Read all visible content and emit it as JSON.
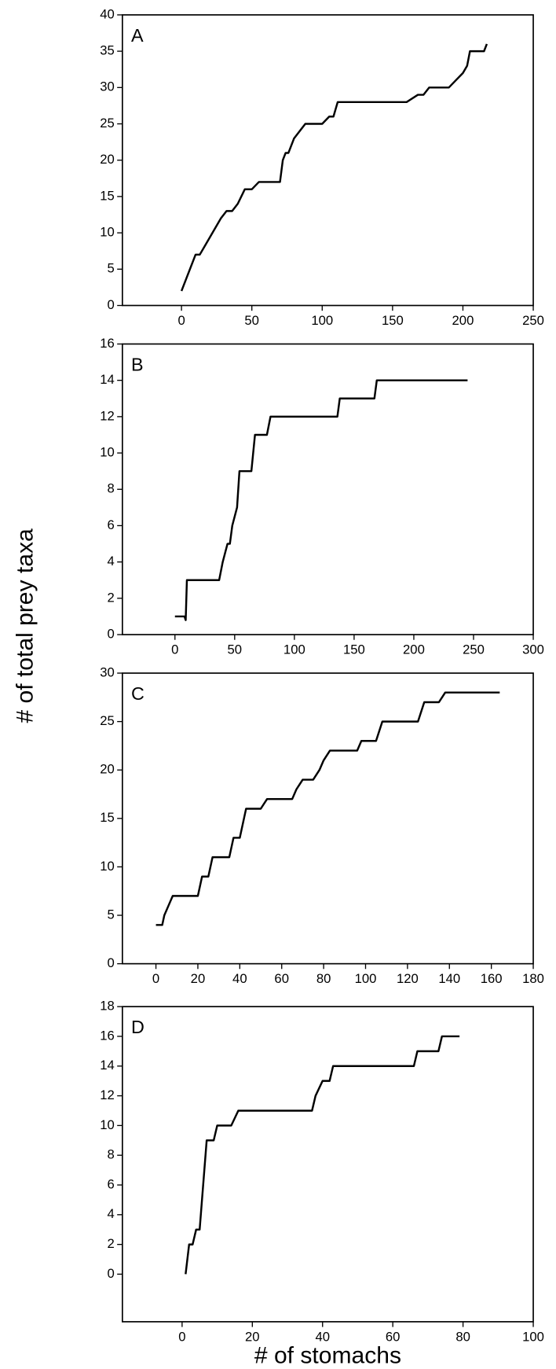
{
  "ylabel": "# of total prey taxa",
  "xlabel": "# of stomachs",
  "chart_data": [
    {
      "type": "line",
      "title": "A",
      "x": [
        0,
        2,
        4,
        6,
        8,
        10,
        13,
        16,
        19,
        22,
        25,
        28,
        32,
        36,
        40,
        45,
        50,
        55,
        60,
        65,
        70,
        72,
        74,
        76,
        80,
        84,
        88,
        95,
        100,
        105,
        108,
        111,
        115,
        120,
        140,
        160,
        168,
        172,
        176,
        180,
        190,
        195,
        200,
        203,
        205,
        210,
        215,
        217
      ],
      "series": [
        {
          "color": "#000000",
          "values": [
            2,
            3,
            4,
            5,
            6,
            7,
            7,
            8,
            9,
            10,
            11,
            12,
            13,
            13,
            14,
            16,
            16,
            17,
            17,
            17,
            17,
            20,
            21,
            21,
            23,
            24,
            25,
            25,
            25,
            26,
            26,
            28,
            28,
            28,
            28,
            28,
            29,
            29,
            30,
            30,
            30,
            31,
            32,
            33,
            35,
            35,
            35,
            36
          ]
        }
      ],
      "xlim": [
        -42,
        250
      ],
      "ylim": [
        0,
        40
      ],
      "xticks": [
        0,
        50,
        100,
        150,
        200,
        250
      ],
      "yticks": [
        0,
        5,
        10,
        15,
        20,
        25,
        30,
        35,
        40
      ]
    },
    {
      "type": "line",
      "title": "B",
      "x": [
        0,
        8,
        9,
        10,
        37,
        40,
        44,
        46,
        48,
        52,
        54,
        64,
        67,
        77,
        80,
        136,
        138,
        167,
        169,
        245
      ],
      "series": [
        {
          "color": "#000000",
          "values": [
            1,
            1,
            0.8,
            3,
            3,
            4,
            5,
            5,
            6,
            7,
            9,
            9,
            11,
            11,
            12,
            12,
            13,
            13,
            14,
            14
          ]
        }
      ],
      "xlim": [
        -44,
        300
      ],
      "ylim": [
        0,
        16
      ],
      "xticks": [
        0,
        50,
        100,
        150,
        200,
        250,
        300
      ],
      "yticks": [
        0,
        2,
        4,
        6,
        8,
        10,
        12,
        14,
        16
      ]
    },
    {
      "type": "line",
      "title": "C",
      "x": [
        0,
        3,
        4,
        6,
        8,
        10,
        20,
        22,
        25,
        27,
        30,
        35,
        37,
        40,
        43,
        50,
        53,
        60,
        65,
        67,
        70,
        75,
        78,
        80,
        83,
        90,
        96,
        98,
        105,
        108,
        125,
        128,
        135,
        138,
        145,
        164
      ],
      "series": [
        {
          "color": "#000000",
          "values": [
            4,
            4,
            5,
            6,
            7,
            7,
            7,
            9,
            9,
            11,
            11,
            11,
            13,
            13,
            16,
            16,
            17,
            17,
            17,
            18,
            19,
            19,
            20,
            21,
            22,
            22,
            22,
            23,
            23,
            25,
            25,
            27,
            27,
            28,
            28,
            28
          ]
        }
      ],
      "xlim": [
        -16,
        180
      ],
      "ylim": [
        0,
        30
      ],
      "xticks": [
        0,
        20,
        40,
        60,
        80,
        100,
        120,
        140,
        160,
        180
      ],
      "yticks": [
        0,
        5,
        10,
        15,
        20,
        25,
        30
      ]
    },
    {
      "type": "line",
      "title": "D",
      "x": [
        1,
        2,
        3,
        4,
        5,
        6,
        7,
        8,
        9,
        10,
        12,
        14,
        16,
        17,
        20,
        37,
        38,
        40,
        42,
        43,
        50,
        66,
        67,
        70,
        73,
        74,
        76,
        79
      ],
      "series": [
        {
          "color": "#000000",
          "values": [
            0,
            2,
            2,
            3,
            3,
            6,
            9,
            9,
            9,
            10,
            10,
            10,
            11,
            11,
            11,
            11,
            12,
            13,
            13,
            14,
            14,
            14,
            15,
            15,
            15,
            16,
            16,
            16
          ]
        }
      ],
      "xlim": [
        -17,
        100
      ],
      "ylim": [
        -3.2,
        18
      ],
      "xticks": [
        0,
        20,
        40,
        60,
        80,
        100
      ],
      "yticks": [
        0,
        2,
        4,
        6,
        8,
        10,
        12,
        14,
        16,
        18
      ]
    }
  ]
}
